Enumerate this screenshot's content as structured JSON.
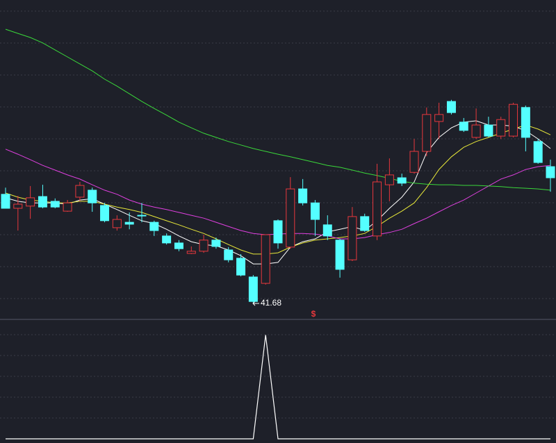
{
  "chart_data": [
    {
      "type": "candlestick",
      "open": [
        45.09,
        44.65,
        44.72,
        45.02,
        44.87,
        44.56,
        45.0,
        45.22,
        44.74,
        44.04,
        44.21,
        44.43,
        44.21,
        43.78,
        43.56,
        43.23,
        43.3,
        43.65,
        43.34,
        43.08,
        42.49,
        42.29,
        44.26,
        43.43,
        45.26,
        44.82,
        44.13,
        43.65,
        43.03,
        44.39,
        43.78,
        45.39,
        45.61,
        45.78,
        46.44,
        47.38,
        48.01,
        47.36,
        46.88,
        47.27,
        46.92,
        46.92,
        47.82,
        46.75,
        45.96
      ],
      "high": [
        45.3,
        45.04,
        45.35,
        45.39,
        44.96,
        44.91,
        45.48,
        45.3,
        44.82,
        44.43,
        44.52,
        44.82,
        44.26,
        43.86,
        43.65,
        43.45,
        43.82,
        43.73,
        43.43,
        43.21,
        42.55,
        43.82,
        44.3,
        45.63,
        45.57,
        44.91,
        44.43,
        43.69,
        44.69,
        44.48,
        46.05,
        46.22,
        45.74,
        46.83,
        47.82,
        47.97,
        48.06,
        47.49,
        47.79,
        47.53,
        47.53,
        47.97,
        47.88,
        46.83,
        46.18
      ],
      "low": [
        44.65,
        43.95,
        44.32,
        44.65,
        44.65,
        44.54,
        44.87,
        44.54,
        44.21,
        43.95,
        43.99,
        44.21,
        43.78,
        43.51,
        43.3,
        43.21,
        43.25,
        43.38,
        42.95,
        42.51,
        41.68,
        42.25,
        43.38,
        43.38,
        44.74,
        43.78,
        43.65,
        42.47,
        42.99,
        43.91,
        43.65,
        44.87,
        45.35,
        45.74,
        46.29,
        46.83,
        47.6,
        47.05,
        46.83,
        46.88,
        46.83,
        46.88,
        46.44,
        46.05,
        45.17
      ],
      "close": [
        44.65,
        44.78,
        44.98,
        44.69,
        44.69,
        44.82,
        45.37,
        44.82,
        44.26,
        44.3,
        44.15,
        44.41,
        43.95,
        43.56,
        43.38,
        43.3,
        43.65,
        43.45,
        43.03,
        42.55,
        41.72,
        43.82,
        43.56,
        45.26,
        44.82,
        44.3,
        43.78,
        42.73,
        44.39,
        43.95,
        45.48,
        45.7,
        45.44,
        46.44,
        47.6,
        47.6,
        47.66,
        47.1,
        47.27,
        46.92,
        47.44,
        47.92,
        46.88,
        46.09,
        45.61
      ],
      "up_color": "#e8383d",
      "down_color": "#54ffff",
      "series": [
        {
          "color": "#ffffff",
          "values": [
            44.98,
            44.87,
            44.82,
            44.82,
            44.82,
            44.78,
            44.91,
            44.95,
            44.78,
            44.61,
            44.43,
            44.26,
            44.17,
            43.99,
            43.78,
            43.6,
            43.51,
            43.47,
            43.34,
            43.16,
            42.9,
            42.9,
            42.95,
            43.43,
            43.6,
            43.69,
            43.91,
            43.99,
            44.08,
            43.95,
            44.26,
            44.65,
            45.0,
            45.48,
            46.4,
            46.88,
            47.18,
            47.36,
            47.4,
            47.27,
            47.27,
            47.23,
            47.09,
            46.83,
            46.53
          ]
        },
        {
          "color": "#e8e83a",
          "values": [
            45.13,
            45.0,
            44.91,
            44.87,
            44.82,
            44.82,
            44.87,
            44.87,
            44.78,
            44.69,
            44.61,
            44.52,
            44.39,
            44.26,
            44.13,
            43.99,
            43.86,
            43.69,
            43.51,
            43.34,
            43.21,
            43.21,
            43.25,
            43.43,
            43.56,
            43.65,
            43.69,
            43.73,
            43.78,
            43.86,
            44.08,
            44.34,
            44.56,
            44.82,
            45.3,
            45.87,
            46.27,
            46.57,
            46.75,
            46.88,
            47.01,
            47.14,
            47.27,
            47.14,
            46.96
          ]
        },
        {
          "color": "#e040e0",
          "values": [
            46.51,
            46.35,
            46.18,
            46.0,
            45.85,
            45.7,
            45.57,
            45.39,
            45.22,
            45.09,
            44.91,
            44.78,
            44.69,
            44.61,
            44.52,
            44.43,
            44.34,
            44.21,
            44.08,
            43.95,
            43.86,
            43.82,
            43.84,
            43.86,
            43.86,
            43.84,
            43.78,
            43.69,
            43.69,
            43.73,
            43.82,
            43.89,
            43.99,
            44.17,
            44.34,
            44.54,
            44.74,
            44.91,
            45.13,
            45.35,
            45.57,
            45.7,
            45.87,
            45.96,
            46.0
          ]
        },
        {
          "color": "#3ad83a",
          "values": [
            50.28,
            50.15,
            50.02,
            49.85,
            49.63,
            49.41,
            49.19,
            48.97,
            48.71,
            48.49,
            48.25,
            48.01,
            47.79,
            47.58,
            47.36,
            47.18,
            47.01,
            46.88,
            46.75,
            46.64,
            46.53,
            46.44,
            46.35,
            46.27,
            46.18,
            46.09,
            46.0,
            45.94,
            45.85,
            45.76,
            45.68,
            45.59,
            45.5,
            45.44,
            45.41,
            45.39,
            45.39,
            45.37,
            45.37,
            45.35,
            45.33,
            45.3,
            45.28,
            45.26,
            45.22
          ]
        }
      ],
      "ylim": [
        41.2,
        51.2
      ],
      "low_label": "41.68",
      "signal": "$",
      "signal_color": "#e8383d"
    },
    {
      "type": "line",
      "color": "#ffffff",
      "values": [
        0,
        0,
        0,
        0,
        0,
        0,
        0,
        0,
        0,
        0,
        0,
        0,
        0,
        0,
        0,
        0,
        0,
        0,
        0,
        0,
        0,
        1,
        0,
        0,
        0,
        0,
        0,
        0,
        0,
        0,
        0,
        0,
        0,
        0,
        0,
        0,
        0,
        0,
        0,
        0,
        0,
        0,
        0,
        0,
        0
      ],
      "ylim": [
        0,
        1.15
      ]
    }
  ]
}
